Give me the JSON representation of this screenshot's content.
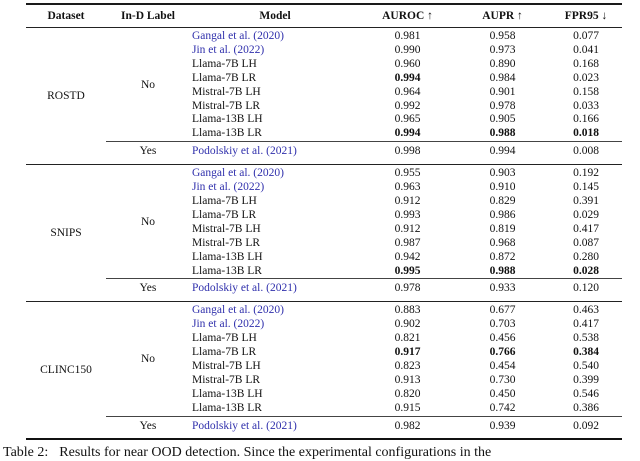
{
  "colors": {
    "citation_blue": "#3030ac",
    "text": "#111111",
    "rule": "#1a1a1a"
  },
  "table": {
    "columns": [
      "Dataset",
      "In-D Label",
      "Model",
      "AUROC ↑",
      "AUPR ↑",
      "FPR95 ↓"
    ],
    "groups": [
      {
        "dataset": "ROSTD",
        "no_label": "No",
        "yes_label": "Yes",
        "no_rows": [
          {
            "model": "Gangal et al. (2020)",
            "cite": true,
            "values": [
              "0.981",
              "0.958",
              "0.077"
            ],
            "bold": [
              false,
              false,
              false
            ]
          },
          {
            "model": "Jin et al. (2022)",
            "cite": true,
            "values": [
              "0.990",
              "0.973",
              "0.041"
            ],
            "bold": [
              false,
              false,
              false
            ]
          },
          {
            "model": "Llama-7B LH",
            "cite": false,
            "values": [
              "0.960",
              "0.890",
              "0.168"
            ],
            "bold": [
              false,
              false,
              false
            ]
          },
          {
            "model": "Llama-7B LR",
            "cite": false,
            "values": [
              "0.994",
              "0.984",
              "0.023"
            ],
            "bold": [
              true,
              false,
              false
            ]
          },
          {
            "model": "Mistral-7B LH",
            "cite": false,
            "values": [
              "0.964",
              "0.901",
              "0.158"
            ],
            "bold": [
              false,
              false,
              false
            ]
          },
          {
            "model": "Mistral-7B LR",
            "cite": false,
            "values": [
              "0.992",
              "0.978",
              "0.033"
            ],
            "bold": [
              false,
              false,
              false
            ]
          },
          {
            "model": "Llama-13B LH",
            "cite": false,
            "values": [
              "0.965",
              "0.905",
              "0.166"
            ],
            "bold": [
              false,
              false,
              false
            ]
          },
          {
            "model": "Llama-13B LR",
            "cite": false,
            "values": [
              "0.994",
              "0.988",
              "0.018"
            ],
            "bold": [
              true,
              true,
              true
            ]
          }
        ],
        "yes_row": {
          "model": "Podolskiy et al. (2021)",
          "cite": true,
          "values": [
            "0.998",
            "0.994",
            "0.008"
          ],
          "bold": [
            false,
            false,
            false
          ]
        }
      },
      {
        "dataset": "SNIPS",
        "no_label": "No",
        "yes_label": "Yes",
        "no_rows": [
          {
            "model": "Gangal et al. (2020)",
            "cite": true,
            "values": [
              "0.955",
              "0.903",
              "0.192"
            ],
            "bold": [
              false,
              false,
              false
            ]
          },
          {
            "model": "Jin et al. (2022)",
            "cite": true,
            "values": [
              "0.963",
              "0.910",
              "0.145"
            ],
            "bold": [
              false,
              false,
              false
            ]
          },
          {
            "model": "Llama-7B LH",
            "cite": false,
            "values": [
              "0.912",
              "0.829",
              "0.391"
            ],
            "bold": [
              false,
              false,
              false
            ]
          },
          {
            "model": "Llama-7B LR",
            "cite": false,
            "values": [
              "0.993",
              "0.986",
              "0.029"
            ],
            "bold": [
              false,
              false,
              false
            ]
          },
          {
            "model": "Mistral-7B LH",
            "cite": false,
            "values": [
              "0.912",
              "0.819",
              "0.417"
            ],
            "bold": [
              false,
              false,
              false
            ]
          },
          {
            "model": "Mistral-7B LR",
            "cite": false,
            "values": [
              "0.987",
              "0.968",
              "0.087"
            ],
            "bold": [
              false,
              false,
              false
            ]
          },
          {
            "model": "Llama-13B LH",
            "cite": false,
            "values": [
              "0.942",
              "0.872",
              "0.280"
            ],
            "bold": [
              false,
              false,
              false
            ]
          },
          {
            "model": "Llama-13B LR",
            "cite": false,
            "values": [
              "0.995",
              "0.988",
              "0.028"
            ],
            "bold": [
              true,
              true,
              true
            ]
          }
        ],
        "yes_row": {
          "model": "Podolskiy et al. (2021)",
          "cite": true,
          "values": [
            "0.978",
            "0.933",
            "0.120"
          ],
          "bold": [
            false,
            false,
            false
          ]
        }
      },
      {
        "dataset": "CLINC150",
        "no_label": "No",
        "yes_label": "Yes",
        "no_rows": [
          {
            "model": "Gangal et al. (2020)",
            "cite": true,
            "values": [
              "0.883",
              "0.677",
              "0.463"
            ],
            "bold": [
              false,
              false,
              false
            ]
          },
          {
            "model": "Jin et al. (2022)",
            "cite": true,
            "values": [
              "0.902",
              "0.703",
              "0.417"
            ],
            "bold": [
              false,
              false,
              false
            ]
          },
          {
            "model": "Llama-7B LH",
            "cite": false,
            "values": [
              "0.821",
              "0.456",
              "0.538"
            ],
            "bold": [
              false,
              false,
              false
            ]
          },
          {
            "model": "Llama-7B LR",
            "cite": false,
            "values": [
              "0.917",
              "0.766",
              "0.384"
            ],
            "bold": [
              true,
              true,
              true
            ]
          },
          {
            "model": "Mistral-7B LH",
            "cite": false,
            "values": [
              "0.823",
              "0.454",
              "0.540"
            ],
            "bold": [
              false,
              false,
              false
            ]
          },
          {
            "model": "Mistral-7B LR",
            "cite": false,
            "values": [
              "0.913",
              "0.730",
              "0.399"
            ],
            "bold": [
              false,
              false,
              false
            ]
          },
          {
            "model": "Llama-13B LH",
            "cite": false,
            "values": [
              "0.820",
              "0.450",
              "0.546"
            ],
            "bold": [
              false,
              false,
              false
            ]
          },
          {
            "model": "Llama-13B LR",
            "cite": false,
            "values": [
              "0.915",
              "0.742",
              "0.386"
            ],
            "bold": [
              false,
              false,
              false
            ]
          }
        ],
        "yes_row": {
          "model": "Podolskiy et al. (2021)",
          "cite": true,
          "values": [
            "0.982",
            "0.939",
            "0.092"
          ],
          "bold": [
            false,
            false,
            false
          ]
        }
      }
    ]
  },
  "caption": {
    "label": "Table 2:",
    "text": "Results for near OOD detection.  Since the experimental configurations in the"
  }
}
